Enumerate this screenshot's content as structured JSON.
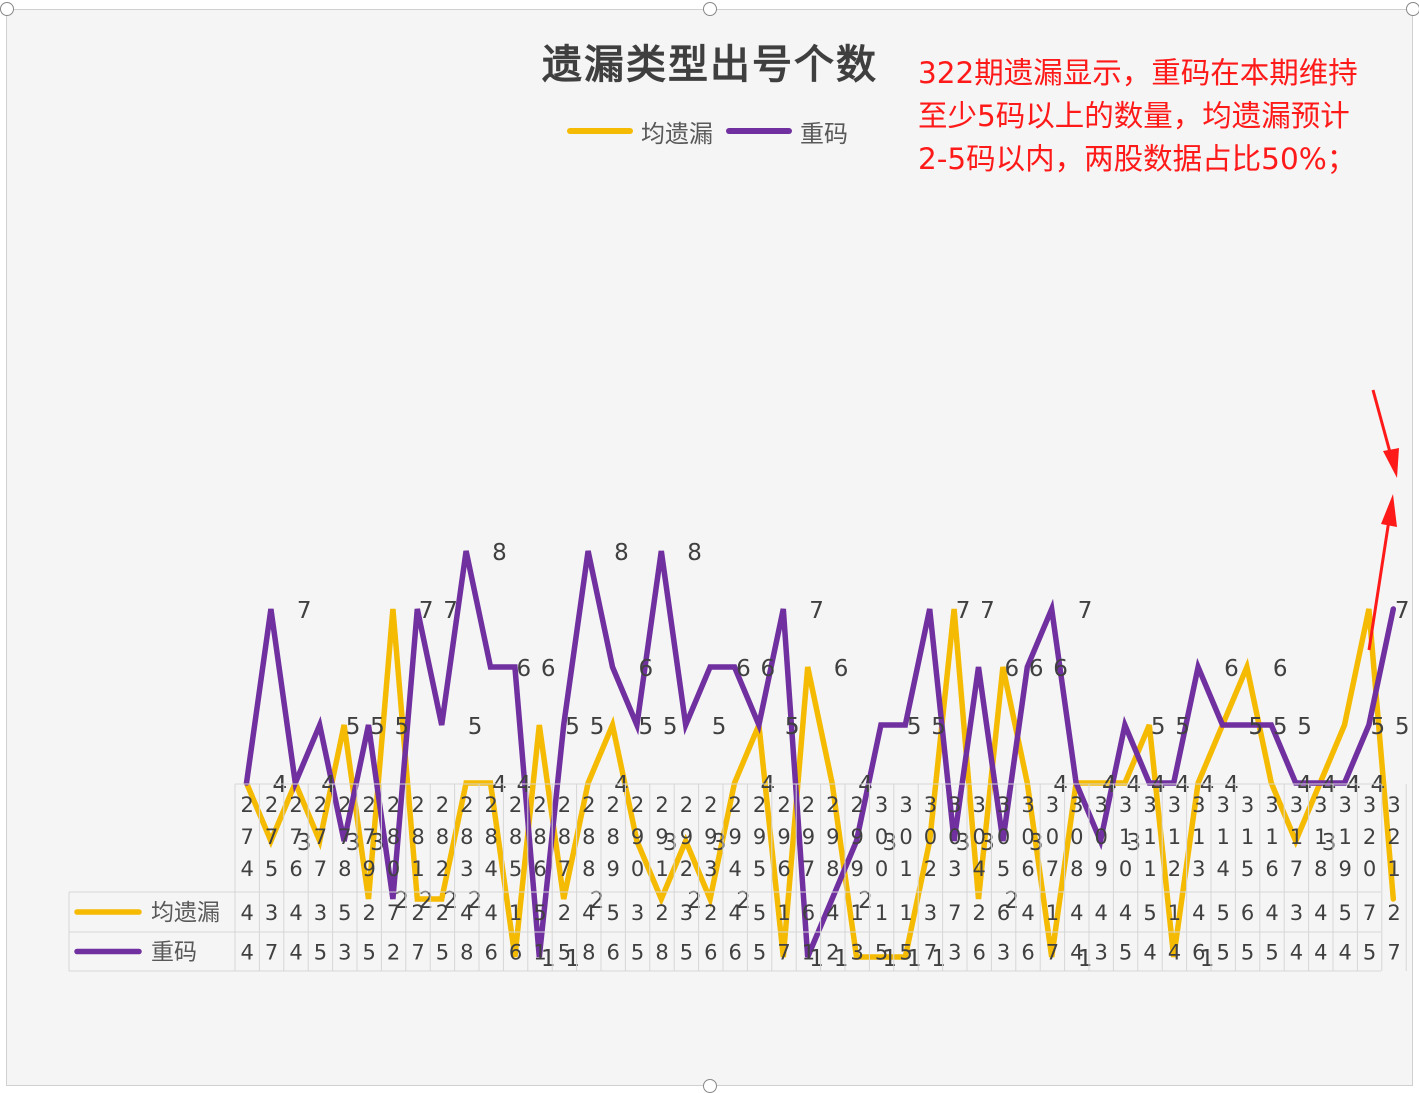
{
  "colors": {
    "yun_yilou": "#F5BA02",
    "chongma": "#7030A0",
    "annotation": "#FF1A1A",
    "arrow": "#FF1A1A"
  },
  "annotation": {
    "line1": "322期遗漏显示，重码在本期维持",
    "line2": "至少5码以上的数量，均遗漏预计",
    "line3": "2-5码以内，两股数据占比50%；"
  },
  "chart_data": {
    "type": "line",
    "title": "遗漏类型出号个数",
    "legend_position": "top",
    "grid": false,
    "ylim": [
      0,
      9
    ],
    "categories": [
      "274",
      "275",
      "276",
      "277",
      "278",
      "279",
      "280",
      "281",
      "282",
      "283",
      "284",
      "285",
      "286",
      "287",
      "288",
      "289",
      "290",
      "291",
      "292",
      "293",
      "294",
      "295",
      "296",
      "297",
      "298",
      "299",
      "300",
      "301",
      "302",
      "303",
      "304",
      "305",
      "306",
      "307",
      "308",
      "309",
      "310",
      "311",
      "312",
      "313",
      "314",
      "315",
      "316",
      "317",
      "318",
      "319",
      "320",
      "321"
    ],
    "series": [
      {
        "name": "均遗漏",
        "color": "#F5BA02",
        "values": [
          4,
          3,
          4,
          3,
          5,
          2,
          7,
          2,
          2,
          4,
          4,
          1,
          5,
          2,
          4,
          5,
          3,
          2,
          3,
          2,
          4,
          5,
          1,
          6,
          4,
          1,
          1,
          1,
          3,
          7,
          2,
          6,
          4,
          1,
          4,
          4,
          4,
          5,
          1,
          4,
          5,
          6,
          4,
          3,
          4,
          5,
          7,
          2
        ]
      },
      {
        "name": "重码",
        "color": "#7030A0",
        "values": [
          4,
          7,
          4,
          5,
          3,
          5,
          2,
          7,
          5,
          8,
          6,
          6,
          1,
          5,
          8,
          6,
          5,
          8,
          5,
          6,
          6,
          5,
          7,
          1,
          2,
          3,
          5,
          5,
          7,
          3,
          6,
          3,
          6,
          7,
          4,
          3,
          5,
          4,
          4,
          6,
          5,
          5,
          5,
          4,
          4,
          4,
          5,
          7
        ]
      }
    ]
  }
}
